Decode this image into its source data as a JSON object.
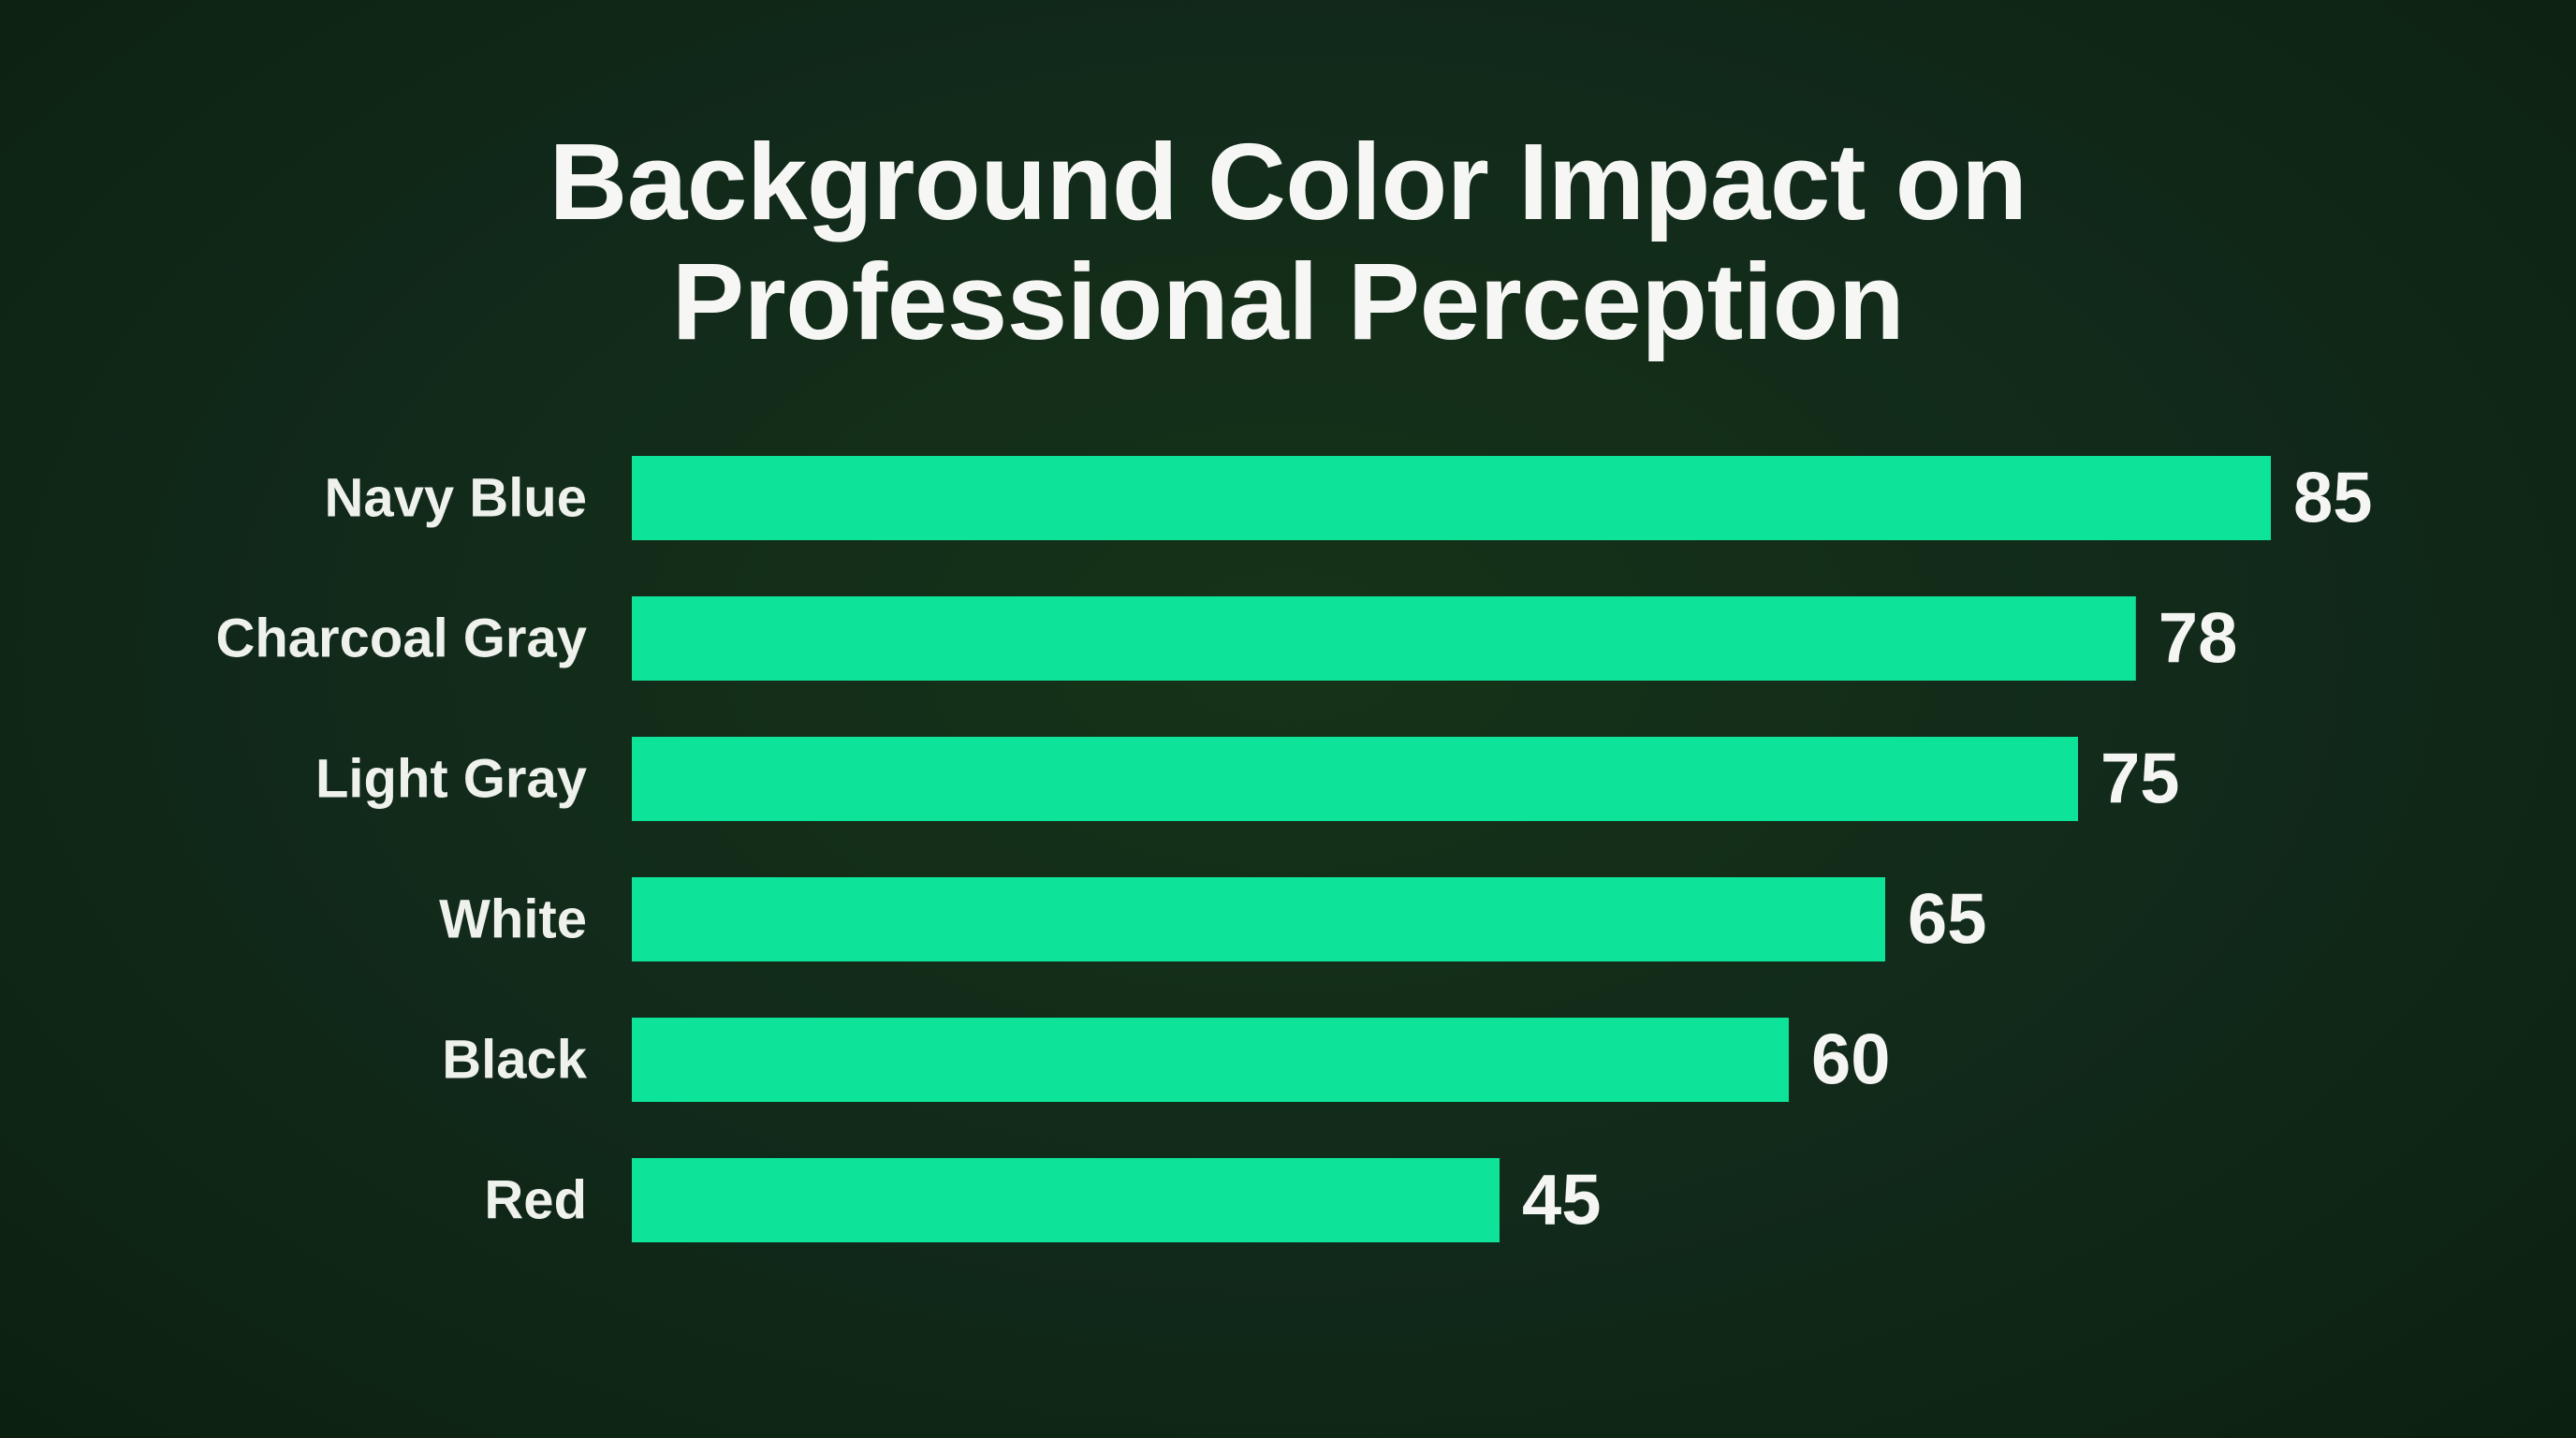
{
  "chart_data": {
    "type": "bar",
    "orientation": "horizontal",
    "title_lines": [
      "Background Color Impact on",
      "Professional Perception"
    ],
    "categories": [
      "Navy Blue",
      "Charcoal Gray",
      "Light Gray",
      "White",
      "Black",
      "Red"
    ],
    "values": [
      85,
      78,
      75,
      65,
      60,
      45
    ],
    "value_labels": [
      "85",
      "78",
      "75",
      "65",
      "60",
      "45"
    ],
    "xlabel": "",
    "ylabel": "",
    "grid": false,
    "legend": "none",
    "bar_color": "#0ee39a",
    "background_color": "#112a13",
    "text_color": "#f6f7f4"
  }
}
